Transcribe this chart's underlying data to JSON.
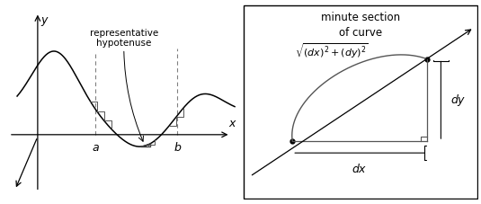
{
  "bg_color": "#ffffff",
  "panel_left": {
    "label_hyp": "representative\nhypotenuse",
    "label_a": "a",
    "label_b": "b",
    "label_x": "x",
    "label_y": "y"
  },
  "panel_right": {
    "title": "minute section\nof curve",
    "formula": "$\\sqrt{(dx)^2+(dy)^2}$",
    "label_dx": "$dx$",
    "label_dy": "$dy$"
  }
}
